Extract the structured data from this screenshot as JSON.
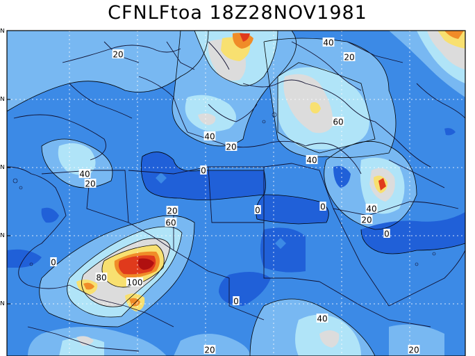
{
  "title": "CFNLFtoa 18Z28NOV1981",
  "y_tick_labels": [
    "N",
    "N",
    "N",
    "N",
    "N"
  ],
  "palette": {
    "deep": "#2060d8",
    "mid": "#3c8ae6",
    "light": "#78b8f2",
    "pale": "#b0e4f8",
    "gray": "#dcdcdc",
    "yellow": "#f8e070",
    "orange": "#f08c28",
    "red": "#e03a1c",
    "darkred": "#b01010"
  },
  "contour_labels": [
    {
      "id": "c20a",
      "text": "20"
    },
    {
      "id": "c40a",
      "text": "40"
    },
    {
      "id": "c20b",
      "text": "20"
    },
    {
      "id": "c60a",
      "text": "60"
    },
    {
      "id": "c40b",
      "text": "40"
    },
    {
      "id": "c20c",
      "text": "20"
    },
    {
      "id": "c40c",
      "text": "40"
    },
    {
      "id": "c40d",
      "text": "40"
    },
    {
      "id": "c20d",
      "text": "20"
    },
    {
      "id": "c0a",
      "text": "0"
    },
    {
      "id": "c0b",
      "text": "0"
    },
    {
      "id": "c0c",
      "text": "0"
    },
    {
      "id": "c40e",
      "text": "40"
    },
    {
      "id": "c20e",
      "text": "20"
    },
    {
      "id": "c0d",
      "text": "0"
    },
    {
      "id": "c20f",
      "text": "20"
    },
    {
      "id": "c60b",
      "text": "60"
    },
    {
      "id": "c0e",
      "text": "0"
    },
    {
      "id": "c80",
      "text": "80"
    },
    {
      "id": "c100",
      "text": "100"
    },
    {
      "id": "c0f",
      "text": "0"
    },
    {
      "id": "c40f",
      "text": "40"
    },
    {
      "id": "c20g",
      "text": "20"
    },
    {
      "id": "c20h",
      "text": "20"
    }
  ]
}
